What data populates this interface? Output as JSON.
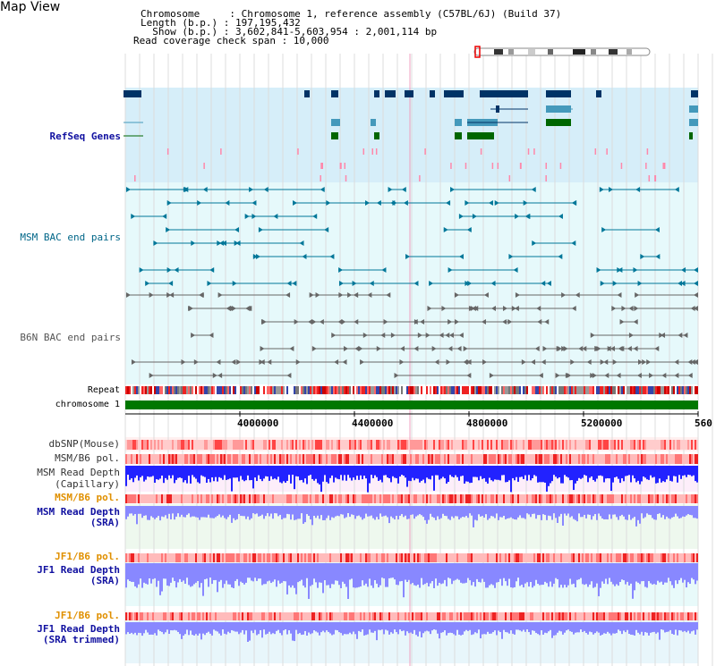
{
  "page": {
    "title": "Map View"
  },
  "info": {
    "chromosome": "Chromosome     : Chromosome 1, reference assembly (C57BL/6J) (Build 37)",
    "length": "Length (b.p.) : 197,195,432",
    "show": "  Show (b.p.) : 3,602,841-5,603,954 : 2,001,114 bp",
    "coverage": "Read coverage check span : 10,000"
  },
  "tracks": {
    "refseq": "RefSeq Genes",
    "msm_bac": "MSM BAC end pairs",
    "b6n_bac": "B6N BAC end pairs",
    "repeat": "Repeat",
    "chromosome": "chromosome 1",
    "dbsnp": "dbSNP(Mouse)",
    "msm_b6_pol": "MSM/B6 pol.",
    "msm_read_depth_cap_1": "MSM Read Depth",
    "msm_read_depth_cap_2": "(Capillary)",
    "msm_b6_pol_2": "MSM/B6 pol.",
    "msm_read_depth_sra_1": "MSM Read Depth",
    "msm_read_depth_sra_2": "(SRA)",
    "jf1_b6_pol": "JF1/B6 pol.",
    "jf1_read_depth_1": "JF1 Read Depth",
    "jf1_read_depth_2": "(SRA)",
    "jf1_b6_pol_2": "JF1/B6 pol.",
    "jf1_trim_1": "JF1 Read Depth",
    "jf1_trim_2": "(SRA trimmed)"
  },
  "axis": {
    "ticks": [
      "4000000",
      "4400000",
      "4800000",
      "5200000",
      "560"
    ]
  },
  "colors": {
    "refseq_bg": "#d6eef9",
    "bac_bg": "#e6f9fb",
    "gene_dark": "#003366",
    "gene_mid": "#4499bb",
    "gene_green": "#006600",
    "msm_line": "#007799",
    "b6n_line": "#666666",
    "depth_blue": "#2222ff",
    "depth_light": "#8888ff",
    "chrom_green": "#007700"
  }
}
